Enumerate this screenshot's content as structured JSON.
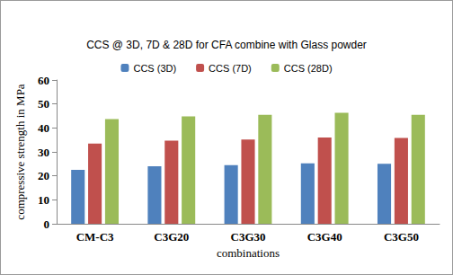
{
  "chart_data": {
    "type": "bar",
    "title": "CCS @ 3D, 7D & 28D for CFA combine with Glass powder",
    "x_label": "combinations",
    "y_label": "compressive strength in MPa",
    "categories": [
      "CM-C3",
      "C3G20",
      "C3G30",
      "C3G40",
      "C3G50"
    ],
    "series": [
      {
        "name": "CCS (3D)",
        "color": "#4f81bd",
        "values": [
          22.5,
          24,
          24.5,
          25.2,
          25
        ]
      },
      {
        "name": "CCS (7D)",
        "color": "#c0504d",
        "values": [
          33.5,
          34.7,
          35.2,
          36,
          35.8
        ]
      },
      {
        "name": "CCS (28D)",
        "color": "#9bbb59",
        "values": [
          43.7,
          44.8,
          45.5,
          46.3,
          45.5
        ]
      }
    ],
    "ylim": [
      0,
      60
    ],
    "yticks": [
      0,
      10,
      20,
      30,
      40,
      50,
      60
    ],
    "grid": false,
    "legend": "top"
  }
}
